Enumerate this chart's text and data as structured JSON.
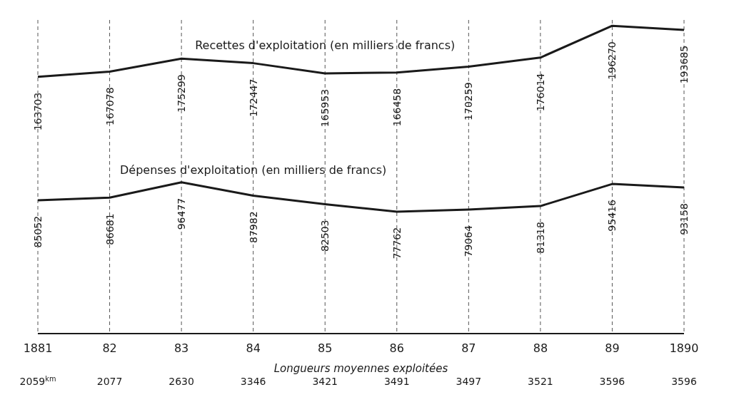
{
  "chart_data": {
    "type": "line",
    "categories": [
      "1881",
      "82",
      "83",
      "84",
      "85",
      "86",
      "87",
      "88",
      "89",
      "1890"
    ],
    "series": [
      {
        "name": "Recettes d'exploitation (en milliers de francs)",
        "color": "#1a1a1a",
        "values": [
          163703,
          167078,
          175299,
          172447,
          165953,
          166458,
          170259,
          176014,
          196270,
          193685
        ]
      },
      {
        "name": "Dépenses d'exploitation (en milliers de francs)",
        "color": "#1a1a1a",
        "values": [
          85052,
          86681,
          96477,
          87982,
          82503,
          77762,
          79064,
          81318,
          95416,
          93158
        ]
      }
    ],
    "ylim": [
      0,
      200000
    ],
    "data_labels": true,
    "grid": "x",
    "marker": "none",
    "line_style": "solid",
    "xlabel": "Longueurs moyennes exploitées",
    "annotations": [
      "2059$^{km}$",
      "2077",
      "2630",
      "3346",
      "3421",
      "3491",
      "3497",
      "3521",
      "3596",
      "3596"
    ]
  }
}
